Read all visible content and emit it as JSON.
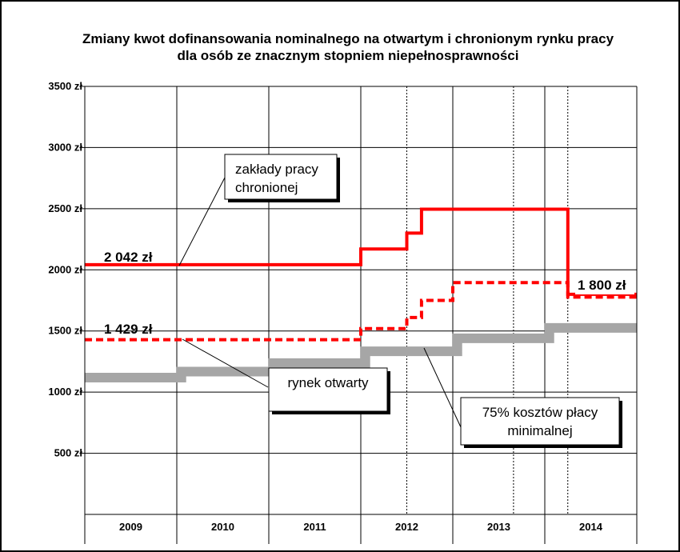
{
  "chart_data": {
    "type": "line",
    "title_lines": [
      "Zmiany kwot dofinansowania nominalnego na otwartym i chronionym rynku pracy",
      "dla osób ze znacznym stopniem niepełnosprawności"
    ],
    "ylim": [
      0,
      3500
    ],
    "y_ticks": [
      {
        "value": 500,
        "label": "500 zł"
      },
      {
        "value": 1000,
        "label": "1000 zł"
      },
      {
        "value": 1500,
        "label": "1500 zł"
      },
      {
        "value": 2000,
        "label": "2000 zł"
      },
      {
        "value": 2500,
        "label": "2500 zł"
      },
      {
        "value": 3000,
        "label": "3000 zł"
      },
      {
        "value": 3500,
        "label": "3500 zł"
      }
    ],
    "xlim": [
      2009,
      2015
    ],
    "categories": [
      "2009",
      "2010",
      "2011",
      "2012",
      "2013",
      "2014"
    ],
    "grid": true,
    "dotted_verticals": [
      2012.5,
      2013.66,
      2014.25
    ],
    "series": [
      {
        "key": "protected",
        "color": "#ff0000",
        "style": "solid",
        "points": [
          [
            2009,
            2042
          ],
          [
            2012.0,
            2042
          ],
          [
            2012.0,
            2170
          ],
          [
            2012.5,
            2170
          ],
          [
            2012.5,
            2300
          ],
          [
            2012.66,
            2300
          ],
          [
            2012.66,
            2496
          ],
          [
            2014.25,
            2496
          ],
          [
            2014.25,
            1800
          ],
          [
            2015,
            1800
          ]
        ]
      },
      {
        "key": "open",
        "color": "#ff0000",
        "style": "dashed",
        "points": [
          [
            2009,
            1429
          ],
          [
            2012.0,
            1429
          ],
          [
            2012.0,
            1520
          ],
          [
            2012.5,
            1520
          ],
          [
            2012.5,
            1610
          ],
          [
            2012.66,
            1610
          ],
          [
            2012.66,
            1750
          ],
          [
            2013.0,
            1750
          ],
          [
            2013.0,
            1895
          ],
          [
            2014.25,
            1895
          ],
          [
            2014.25,
            1777
          ],
          [
            2015,
            1777
          ]
        ]
      },
      {
        "key": "min_wage",
        "color": "#a0a0a0",
        "style": "thick",
        "points": [
          [
            2009,
            1119
          ],
          [
            2010.05,
            1119
          ],
          [
            2010.05,
            1168
          ],
          [
            2011.05,
            1168
          ],
          [
            2011.05,
            1237
          ],
          [
            2012.05,
            1237
          ],
          [
            2012.05,
            1334
          ],
          [
            2013.05,
            1334
          ],
          [
            2013.05,
            1440
          ],
          [
            2014.05,
            1440
          ],
          [
            2014.05,
            1525
          ],
          [
            2015,
            1525
          ]
        ]
      }
    ],
    "annotations": {
      "protected_label": [
        "zakłady pracy",
        "chronionej"
      ],
      "open_label": [
        "rynek otwarty"
      ],
      "min_wage_label": [
        "75% kosztów płacy",
        "minimalnej"
      ],
      "value_2042": "2 042 zł",
      "value_1429": "1 429 zł",
      "value_1800": "1 800 zł"
    }
  }
}
